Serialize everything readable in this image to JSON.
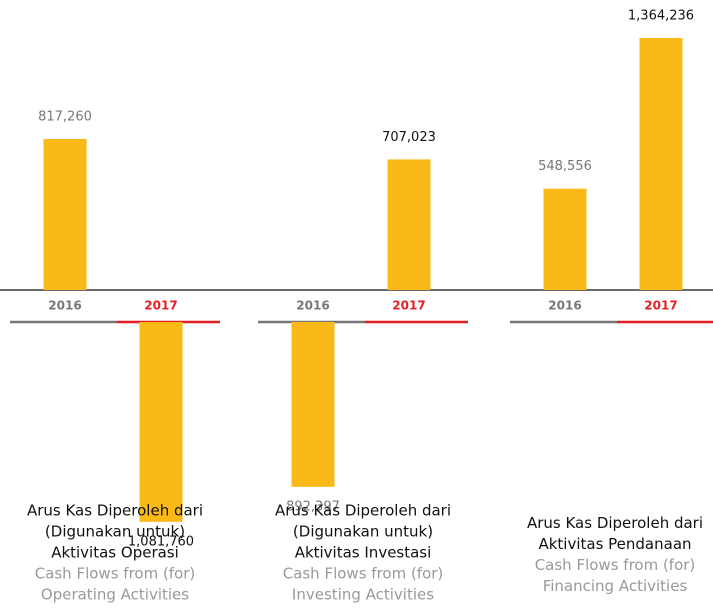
{
  "chart_data": {
    "type": "bar",
    "color": "#fbb917",
    "category_colors": [
      "#777777",
      "#e31e24"
    ],
    "value_label_colors": [
      "#777777",
      "#111111"
    ],
    "baseline_color": "#111111",
    "groups": [
      {
        "categories": [
          "2016",
          "2017"
        ],
        "values": [
          817260,
          -1081760
        ],
        "value_labels": [
          "817,260",
          "1,081,760"
        ],
        "label": [
          "Arus Kas Diperoleh dari",
          "(Digunakan untuk)",
          "Aktivitas Operasi"
        ],
        "label_en": [
          "Cash Flows from (for)",
          "Operating Activities"
        ]
      },
      {
        "categories": [
          "2016",
          "2017"
        ],
        "values": [
          -892397,
          707023
        ],
        "value_labels": [
          "892,397",
          "707,023"
        ],
        "label": [
          "Arus Kas Diperoleh dari",
          "(Digunakan untuk)",
          "Aktivitas Investasi"
        ],
        "label_en": [
          "Cash Flows from (for)",
          "Investing Activities"
        ]
      },
      {
        "categories": [
          "2016",
          "2017"
        ],
        "values": [
          548556,
          1364236
        ],
        "value_labels": [
          "548,556",
          "1,364,236"
        ],
        "label": [
          "Arus Kas Diperoleh dari",
          "Aktivitas Pendanaan"
        ],
        "label_en": [
          "Cash Flows from (for)",
          "Financing Activities"
        ]
      }
    ]
  }
}
